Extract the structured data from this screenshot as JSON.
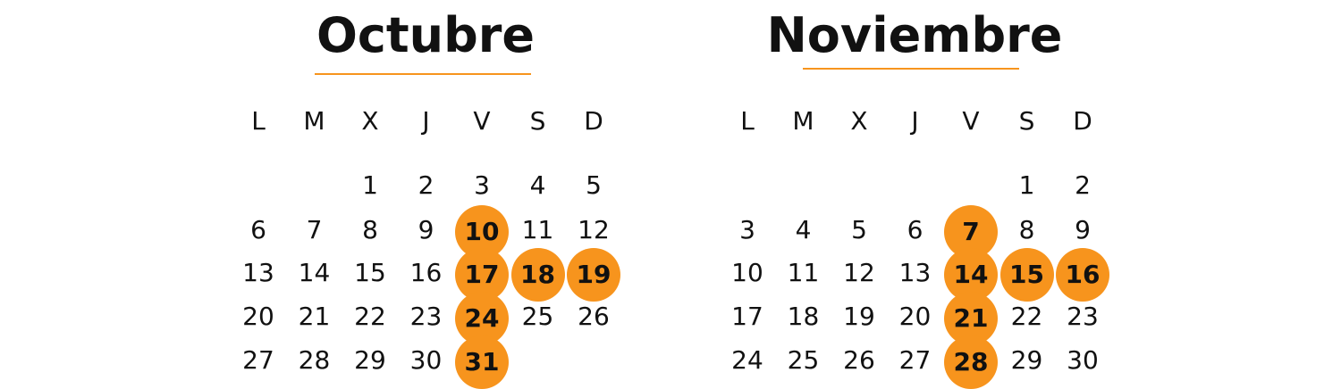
{
  "accent_color": "#f7941d",
  "weekdays": [
    "L",
    "M",
    "X",
    "J",
    "V",
    "S",
    "D"
  ],
  "months": [
    {
      "name": "Octubre",
      "first_weekday": "X",
      "days": 31,
      "highlighted_days": [
        10,
        17,
        18,
        19,
        24,
        31
      ]
    },
    {
      "name": "Noviembre",
      "first_weekday": "S",
      "days": 30,
      "highlighted_days": [
        7,
        14,
        15,
        16,
        21,
        28
      ]
    }
  ]
}
